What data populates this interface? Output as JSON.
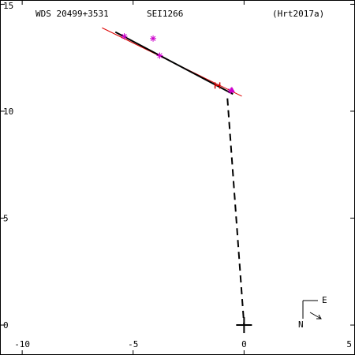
{
  "header": {
    "wds": "WDS 20499+3531",
    "disc": "SEI1266",
    "ref": "(Hrt2017a)"
  },
  "compass": {
    "east_label": "E",
    "north_label": "N"
  },
  "chart_data": {
    "type": "scatter",
    "title": "",
    "xlabel": "",
    "ylabel": "",
    "xlim": [
      -11,
      5
    ],
    "ylim": [
      -1.4,
      15.2
    ],
    "x_ticks": [
      -10,
      -5,
      0,
      5
    ],
    "x_tick_labels": [
      "-10",
      "-5",
      "0",
      "5"
    ],
    "y_ticks": [
      0,
      5,
      10,
      15
    ],
    "y_tick_labels": [
      "0",
      "5",
      "10",
      "15"
    ],
    "primary": [
      0,
      0
    ],
    "orbit_black": [
      [
        -5.8,
        13.7
      ],
      [
        -0.5,
        10.8
      ]
    ],
    "orbit_red": [
      [
        -6.4,
        13.9
      ],
      [
        -0.1,
        10.7
      ]
    ],
    "residual_dashed": [
      [
        -0.75,
        10.6
      ],
      [
        0.0,
        0.0
      ]
    ],
    "observations": [
      {
        "x": -5.4,
        "y": 13.5,
        "marker": "asterisk",
        "color": "#cc00cc"
      },
      {
        "x": -4.1,
        "y": 13.4,
        "marker": "asterisk",
        "color": "#cc00cc"
      },
      {
        "x": -3.8,
        "y": 12.6,
        "marker": "asterisk",
        "color": "#cc00cc"
      },
      {
        "x": -1.2,
        "y": 11.2,
        "marker": "tick",
        "color": "#cc0000"
      },
      {
        "x": -0.55,
        "y": 11.0,
        "marker": "triangle",
        "color": "#cc00cc"
      },
      {
        "x": -0.6,
        "y": 10.95,
        "marker": "asterisk",
        "color": "#cc00cc"
      }
    ]
  }
}
